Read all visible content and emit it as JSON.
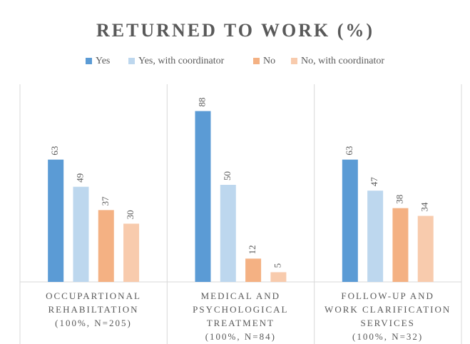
{
  "chart_data": {
    "type": "bar",
    "title": "RETURNED TO WORK (%)",
    "categories": [
      "OCCUPARTIONAL\nREHABILTATION\n(100%, N=205)",
      "MEDICAL AND\nPSYCHOLOGICAL\nTREATMENT\n(100%, N=84)",
      "FOLLOW-UP AND\nWORK CLARIFICATION\nSERVICES\n(100%, N=32)"
    ],
    "series": [
      {
        "name": "Yes",
        "color": "#5b9bd5",
        "values": [
          63,
          88,
          63
        ]
      },
      {
        "name": "Yes, with coordinator",
        "color": "#bdd7ee",
        "values": [
          49,
          50,
          47
        ]
      },
      {
        "name": "No",
        "color": "#f4b183",
        "values": [
          37,
          12,
          38
        ]
      },
      {
        "name": "No, with coordinator",
        "color": "#f8cbad",
        "values": [
          30,
          5,
          34
        ]
      }
    ]
  }
}
